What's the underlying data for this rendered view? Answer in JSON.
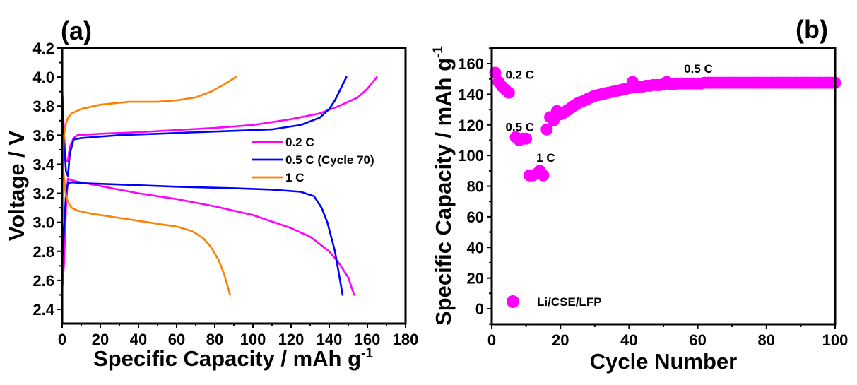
{
  "chart_data": [
    {
      "panel": "(a)",
      "type": "line",
      "title": "",
      "xlabel": "Specific Capacity / mAh g",
      "xlabel_sup": "-1",
      "ylabel": "Voltage / V",
      "xlim": [
        0,
        180
      ],
      "ylim": [
        2.4,
        4.2
      ],
      "xticks": [
        0,
        20,
        40,
        60,
        80,
        100,
        120,
        140,
        160,
        180
      ],
      "yticks": [
        2.4,
        2.6,
        2.8,
        3.0,
        3.2,
        3.4,
        3.6,
        3.8,
        4.0,
        4.2
      ],
      "ytick_labels": [
        "2.4",
        "2.6",
        "2.8",
        "3.0",
        "3.2",
        "3.4",
        "3.6",
        "3.8",
        "4.0",
        "4.2"
      ],
      "grid": false,
      "legend_position": "center-right",
      "series": [
        {
          "name": "0.2 C",
          "color": "#ff00ff",
          "segments": [
            {
              "part": "charge",
              "x": [
                0,
                1,
                2,
                3,
                4,
                6,
                8,
                20,
                40,
                60,
                80,
                100,
                120,
                135,
                145,
                155,
                160,
                165
              ],
              "y": [
                3.93,
                3.6,
                3.42,
                3.42,
                3.52,
                3.58,
                3.6,
                3.61,
                3.62,
                3.635,
                3.65,
                3.67,
                3.71,
                3.75,
                3.8,
                3.86,
                3.92,
                4.0
              ]
            },
            {
              "part": "discharge",
              "x": [
                0,
                1,
                2,
                3,
                5,
                8,
                20,
                40,
                60,
                80,
                100,
                120,
                130,
                140,
                145,
                150,
                153
              ],
              "y": [
                2.53,
                2.72,
                3.1,
                3.3,
                3.29,
                3.28,
                3.25,
                3.2,
                3.16,
                3.11,
                3.05,
                2.96,
                2.9,
                2.8,
                2.72,
                2.62,
                2.5
              ]
            }
          ]
        },
        {
          "name": "0.5 C (Cycle 70)",
          "color": "#0000ff",
          "segments": [
            {
              "part": "charge",
              "x": [
                0,
                1,
                2,
                3,
                4,
                6,
                10,
                30,
                50,
                70,
                90,
                110,
                125,
                135,
                140,
                143,
                146,
                149
              ],
              "y": [
                3.9,
                3.55,
                3.35,
                3.32,
                3.47,
                3.57,
                3.58,
                3.6,
                3.61,
                3.62,
                3.63,
                3.64,
                3.67,
                3.72,
                3.78,
                3.84,
                3.92,
                4.0
              ]
            },
            {
              "part": "discharge",
              "x": [
                0,
                1,
                2,
                3,
                5,
                10,
                30,
                60,
                90,
                110,
                125,
                132,
                136,
                139,
                141,
                143,
                145,
                147
              ],
              "y": [
                2.72,
                2.95,
                3.2,
                3.27,
                3.275,
                3.27,
                3.26,
                3.245,
                3.235,
                3.225,
                3.21,
                3.18,
                3.1,
                3.0,
                2.9,
                2.8,
                2.65,
                2.5
              ]
            }
          ]
        },
        {
          "name": "1 C",
          "color": "#ff7f00",
          "segments": [
            {
              "part": "charge",
              "x": [
                0,
                0.5,
                1,
                2,
                3,
                5,
                10,
                20,
                35,
                50,
                60,
                70,
                78,
                85,
                91
              ],
              "y": [
                3.3,
                3.45,
                3.6,
                3.68,
                3.72,
                3.75,
                3.78,
                3.81,
                3.83,
                3.83,
                3.84,
                3.86,
                3.9,
                3.95,
                4.0
              ]
            },
            {
              "part": "discharge",
              "x": [
                0,
                1,
                2,
                3,
                5,
                8,
                15,
                30,
                45,
                60,
                68,
                74,
                78,
                82,
                85,
                88
              ],
              "y": [
                3.45,
                3.3,
                3.18,
                3.14,
                3.1,
                3.08,
                3.06,
                3.03,
                3.0,
                2.97,
                2.94,
                2.89,
                2.83,
                2.74,
                2.64,
                2.5
              ]
            }
          ]
        }
      ]
    },
    {
      "panel": "(b)",
      "type": "scatter",
      "title": "",
      "xlabel": "Cycle Number",
      "ylabel": "Specific Capacity / mAh g",
      "ylabel_sup": "-1",
      "xlim": [
        0,
        100
      ],
      "ylim": [
        -10,
        170
      ],
      "xticks": [
        0,
        20,
        40,
        60,
        80,
        100
      ],
      "yticks": [
        0,
        20,
        40,
        60,
        80,
        100,
        120,
        140,
        160
      ],
      "grid": false,
      "legend_position": "bottom-left",
      "series": [
        {
          "name": "Li/CSE/LFP",
          "color": "#ff00ff",
          "x": [
            1,
            2,
            3,
            4,
            5,
            7,
            8,
            9,
            10,
            11,
            12,
            13,
            14,
            15,
            16,
            17,
            18,
            19,
            20,
            21,
            22,
            23,
            24,
            25,
            26,
            27,
            28,
            29,
            30,
            31,
            32,
            33,
            34,
            35,
            36,
            37,
            38,
            39,
            40,
            41,
            42,
            43,
            44,
            45,
            46,
            47,
            48,
            49,
            50,
            51,
            52,
            53,
            54,
            55,
            56,
            57,
            58,
            59,
            60,
            61,
            62,
            63,
            64,
            65,
            66,
            67,
            68,
            69,
            70,
            71,
            72,
            73,
            74,
            75,
            76,
            77,
            78,
            79,
            80,
            81,
            82,
            83,
            84,
            85,
            86,
            87,
            88,
            89,
            90,
            91,
            92,
            93,
            94,
            95,
            96,
            97,
            98,
            99,
            100
          ],
          "y": [
            154,
            148,
            145,
            143,
            141,
            112,
            110,
            111,
            111,
            87,
            87,
            88,
            90,
            87,
            117,
            125,
            123,
            129,
            127,
            128,
            129.5,
            131,
            132.5,
            134,
            135,
            136,
            137,
            138,
            139,
            139.5,
            140,
            140.5,
            141,
            141.5,
            142,
            142.5,
            143,
            143.5,
            144,
            148,
            144.5,
            145,
            145,
            145.5,
            145.5,
            146,
            146,
            146,
            146.5,
            148,
            146.5,
            146.5,
            147,
            147,
            147,
            147,
            147,
            147,
            147,
            147,
            147.5,
            147.5,
            147.5,
            147.5,
            147.5,
            147.5,
            147.5,
            147.5,
            147.5,
            147.5,
            147.5,
            147.5,
            147.5,
            147.5,
            147.5,
            147.5,
            147.5,
            147.5,
            147.5,
            147.5,
            147.5,
            147.5,
            147.5,
            147.5,
            147.5,
            147.5,
            147.5,
            147.5,
            147.5,
            147.5,
            147.5,
            147.5,
            147.5,
            147.5,
            147.5,
            147.5,
            147.5,
            147.5,
            147.5
          ]
        }
      ],
      "annotations": [
        {
          "text": "0.2 C",
          "x": 4,
          "y": 150
        },
        {
          "text": "0.5 C",
          "x": 4,
          "y": 116
        },
        {
          "text": "1 C",
          "x": 13,
          "y": 96
        },
        {
          "text": "0.5 C",
          "x": 56,
          "y": 154
        }
      ]
    }
  ]
}
